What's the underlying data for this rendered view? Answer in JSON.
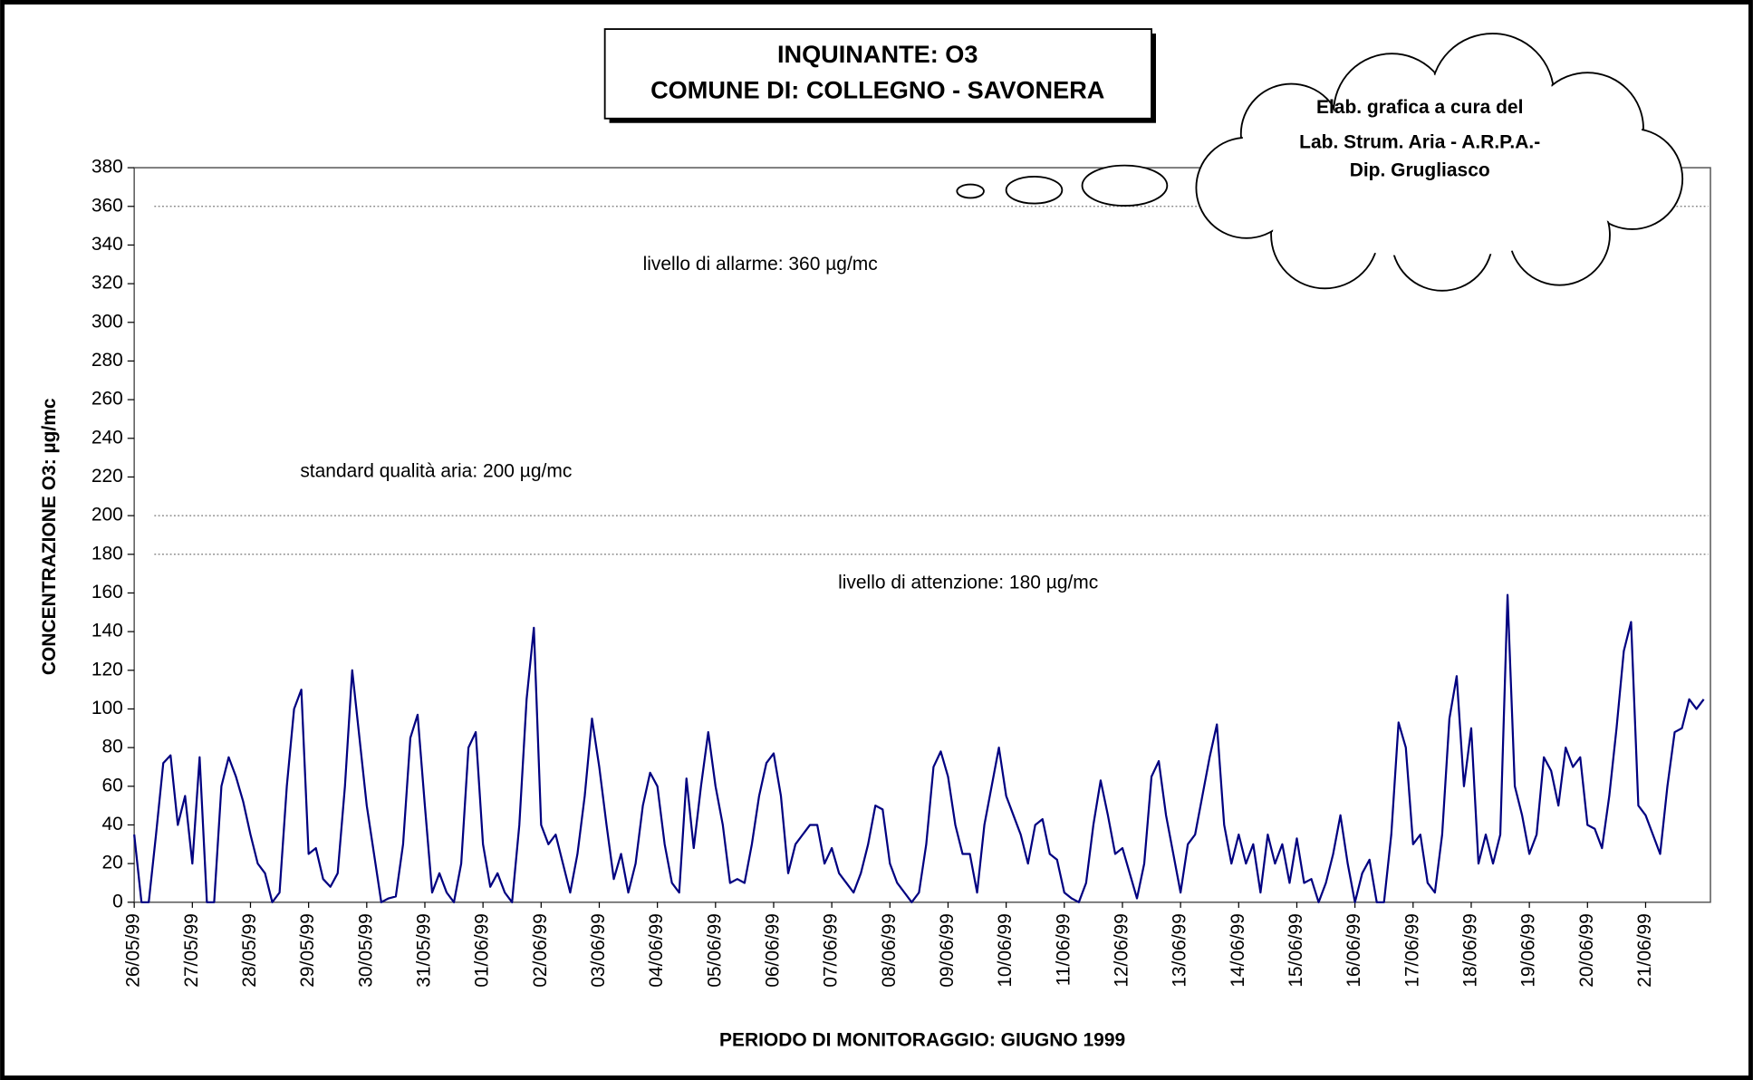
{
  "chart_data": {
    "type": "line",
    "title": "INQUINANTE: O3",
    "subtitle": "COMUNE DI: COLLEGNO - SAVONERA",
    "note": [
      "Elab. grafica a cura del",
      "Lab. Strum. Aria - A.R.P.A.-",
      "Dip. Grugliasco"
    ],
    "y_label": "CONCENTRAZIONE O3: µg/mc",
    "x_label": "PERIODO DI MONITORAGGIO: GIUGNO 1999",
    "color": "#000080",
    "ylim": [
      0,
      380
    ],
    "yticks": [
      0,
      20,
      40,
      60,
      80,
      100,
      120,
      140,
      160,
      180,
      200,
      220,
      240,
      260,
      280,
      300,
      320,
      340,
      360,
      380
    ],
    "reference_lines": [
      {
        "value": 360,
        "label": "livello di allarme: 360 µg/mc"
      },
      {
        "value": 200,
        "label": "standard qualità aria: 200 µg/mc"
      },
      {
        "value": 180,
        "label": "livello di attenzione: 180 µg/mc"
      }
    ],
    "categories": [
      "26/05/99",
      null,
      null,
      null,
      null,
      null,
      null,
      null,
      "27/05/99",
      null,
      null,
      null,
      null,
      null,
      null,
      null,
      "28/05/99",
      null,
      null,
      null,
      null,
      null,
      null,
      null,
      "29/05/99",
      null,
      null,
      null,
      null,
      null,
      null,
      null,
      "30/05/99",
      null,
      null,
      null,
      null,
      null,
      null,
      null,
      "31/05/99",
      null,
      null,
      null,
      null,
      null,
      null,
      null,
      "01/06/99",
      null,
      null,
      null,
      null,
      null,
      null,
      null,
      "02/06/99",
      null,
      null,
      null,
      null,
      null,
      null,
      null,
      "03/06/99",
      null,
      null,
      null,
      null,
      null,
      null,
      null,
      "04/06/99",
      null,
      null,
      null,
      null,
      null,
      null,
      null,
      "05/06/99",
      null,
      null,
      null,
      null,
      null,
      null,
      null,
      "06/06/99",
      null,
      null,
      null,
      null,
      null,
      null,
      null,
      "07/06/99",
      null,
      null,
      null,
      null,
      null,
      null,
      null,
      "08/06/99",
      null,
      null,
      null,
      null,
      null,
      null,
      null,
      "09/06/99",
      null,
      null,
      null,
      null,
      null,
      null,
      null,
      "10/06/99",
      null,
      null,
      null,
      null,
      null,
      null,
      null,
      "11/06/99",
      null,
      null,
      null,
      null,
      null,
      null,
      null,
      "12/06/99",
      null,
      null,
      null,
      null,
      null,
      null,
      null,
      "13/06/99",
      null,
      null,
      null,
      null,
      null,
      null,
      null,
      "14/06/99",
      null,
      null,
      null,
      null,
      null,
      null,
      null,
      "15/06/99",
      null,
      null,
      null,
      null,
      null,
      null,
      null,
      "16/06/99",
      null,
      null,
      null,
      null,
      null,
      null,
      null,
      "17/06/99",
      null,
      null,
      null,
      null,
      null,
      null,
      null,
      "18/06/99",
      null,
      null,
      null,
      null,
      null,
      null,
      null,
      "19/06/99",
      null,
      null,
      null,
      null,
      null,
      null,
      null,
      "20/06/99",
      null,
      null,
      null,
      null,
      null,
      null,
      null,
      "21/06/99",
      null,
      null,
      null,
      null,
      null,
      null,
      null,
      null
    ],
    "values": [
      35,
      0,
      0,
      35,
      72,
      76,
      40,
      55,
      20,
      75,
      0,
      0,
      60,
      75,
      65,
      52,
      35,
      20,
      15,
      0,
      5,
      60,
      100,
      110,
      25,
      28,
      12,
      8,
      15,
      60,
      120,
      85,
      50,
      25,
      0,
      2,
      3,
      30,
      85,
      97,
      50,
      5,
      15,
      5,
      0,
      20,
      80,
      88,
      30,
      8,
      15,
      5,
      0,
      40,
      105,
      142,
      40,
      30,
      35,
      20,
      5,
      25,
      55,
      95,
      70,
      40,
      12,
      25,
      5,
      20,
      50,
      67,
      60,
      30,
      10,
      5,
      64,
      28,
      60,
      88,
      60,
      40,
      10,
      12,
      10,
      30,
      55,
      72,
      77,
      55,
      15,
      30,
      35,
      40,
      40,
      20,
      28,
      15,
      10,
      5,
      15,
      30,
      50,
      48,
      20,
      10,
      5,
      0,
      5,
      30,
      70,
      78,
      65,
      40,
      25,
      25,
      5,
      40,
      60,
      80,
      55,
      45,
      35,
      20,
      40,
      43,
      25,
      22,
      5,
      2,
      0,
      10,
      40,
      63,
      45,
      25,
      28,
      15,
      2,
      20,
      65,
      73,
      45,
      25,
      5,
      30,
      35,
      55,
      75,
      92,
      40,
      20,
      35,
      20,
      30,
      5,
      35,
      20,
      30,
      10,
      33,
      10,
      12,
      0,
      10,
      25,
      45,
      20,
      0,
      15,
      22,
      0,
      0,
      35,
      93,
      80,
      30,
      35,
      10,
      5,
      35,
      95,
      117,
      60,
      90,
      20,
      35,
      20,
      35,
      159,
      60,
      45,
      25,
      35,
      75,
      68,
      50,
      80,
      70,
      75,
      40,
      38,
      28,
      55,
      90,
      130,
      145,
      50,
      45,
      35,
      25,
      60,
      88,
      90,
      105,
      100,
      105
    ]
  }
}
